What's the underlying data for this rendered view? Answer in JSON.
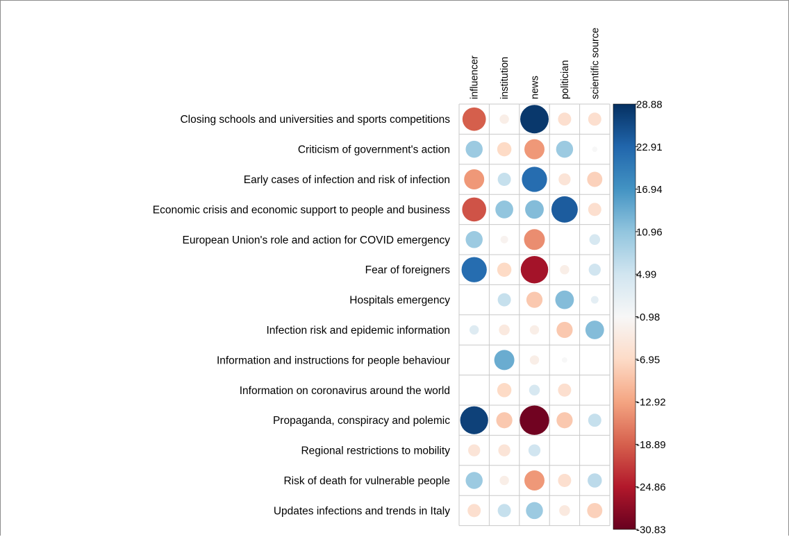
{
  "chart_data": {
    "type": "heatmap",
    "title": "",
    "xlabel": "",
    "ylabel": "",
    "mark": "circle",
    "columns": [
      "influencer",
      "institution",
      "news",
      "politician",
      "scientific source"
    ],
    "rows": [
      "Closing schools and universities and sports competitions",
      "Criticism of government's action",
      "Early cases of infection and risk of infection",
      "Economic crisis and economic support to people and business",
      "European Union's role and action for COVID emergency",
      "Fear of foreigners",
      "Hospitals emergency",
      "Infection risk and epidemic information",
      "Information and instructions for people behaviour",
      "Information on coronavirus around the world",
      "Propaganda, conspiracy and polemic",
      "Regional restrictions to mobility",
      "Risk of death for vulnerable people",
      "Updates infections and trends in Italy"
    ],
    "values": [
      [
        -19,
        -3,
        28,
        -6,
        -6
      ],
      [
        10,
        -7,
        -14,
        10,
        -1
      ],
      [
        -14,
        6,
        22,
        -5,
        -8
      ],
      [
        -20,
        11,
        12,
        24,
        -6
      ],
      [
        10,
        -2,
        -15,
        0,
        4
      ],
      [
        22,
        -7,
        -26,
        -3,
        5
      ],
      [
        0,
        6,
        -9,
        12,
        2
      ],
      [
        3,
        -4,
        -3,
        -9,
        12
      ],
      [
        0,
        14,
        -3,
        -1,
        0
      ],
      [
        0,
        -7,
        4,
        -6,
        0
      ],
      [
        27,
        -9,
        -30,
        -9,
        6
      ],
      [
        -5,
        -5,
        5,
        0,
        0
      ],
      [
        10,
        -3,
        -14,
        -6,
        7
      ],
      [
        -6,
        6,
        10,
        -4,
        -8
      ]
    ],
    "colorbar": {
      "min": -30.83,
      "max": 28.88,
      "tick_labels": [
        "28.88",
        "22.91",
        "16.94",
        "10.96",
        "4.99",
        "-0.98",
        "-6.95",
        "-12.92",
        "-18.89",
        "-24.86",
        "-30.83"
      ],
      "colors": [
        "#67001f",
        "#b2182b",
        "#d6604d",
        "#f4a582",
        "#fddbc7",
        "#f7f7f7",
        "#d1e5f0",
        "#92c5de",
        "#4393c3",
        "#2166ac",
        "#053061"
      ]
    },
    "grid": true,
    "legend": "right"
  }
}
